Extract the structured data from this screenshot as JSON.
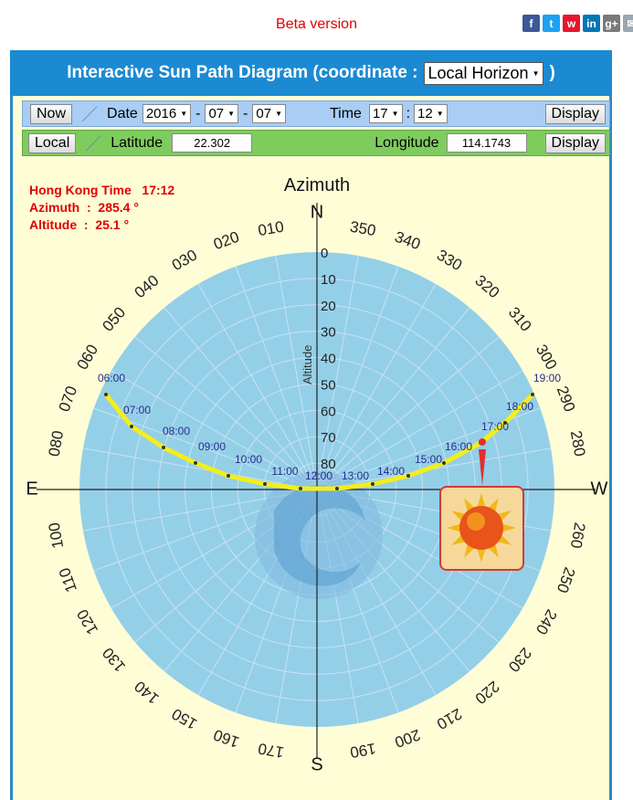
{
  "beta_label": "Beta version",
  "social": [
    {
      "name": "facebook-icon",
      "glyph": "f",
      "color": "#3b5998"
    },
    {
      "name": "twitter-icon",
      "glyph": "t",
      "color": "#1da1f2"
    },
    {
      "name": "weibo-icon",
      "glyph": "w",
      "color": "#e6162d"
    },
    {
      "name": "linkedin-icon",
      "glyph": "in",
      "color": "#0077b5"
    },
    {
      "name": "googleplus-icon",
      "glyph": "g+",
      "color": "#7a7a7a"
    },
    {
      "name": "email-icon",
      "glyph": "✉",
      "color": "#9aa6b2"
    }
  ],
  "header": {
    "title_prefix": "Interactive Sun Path Diagram (coordinate :",
    "coordinate_value": "Local Horizon",
    "title_suffix": ")"
  },
  "datebar": {
    "now_label": "Now",
    "date_label": "Date",
    "year": "2016",
    "dash": "-",
    "month": "07",
    "day": "07",
    "time_label": "Time",
    "hour": "17",
    "colon": ":",
    "minute": "12",
    "display_label": "Display"
  },
  "locbar": {
    "local_label": "Local",
    "latitude_label": "Latitude",
    "latitude_value": "22.302",
    "longitude_label": "Longitude",
    "longitude_value": "114.1743",
    "display_label": "Display"
  },
  "info": {
    "time_line": "Hong Kong Time   17:12",
    "azimuth_line": "Azimuth  :  285.4 °",
    "altitude_line": "Altitude  :  25.1 °"
  },
  "diagram": {
    "azimuth_title": "Azimuth",
    "altitude_label": "Altitude",
    "north": "N",
    "south": "S",
    "east": "E",
    "west": "W",
    "azimuth_ticks": [
      "010",
      "020",
      "030",
      "040",
      "050",
      "060",
      "070",
      "080",
      "100",
      "110",
      "120",
      "130",
      "140",
      "150",
      "160",
      "170",
      "190",
      "200",
      "210",
      "220",
      "230",
      "240",
      "250",
      "260",
      "280",
      "290",
      "300",
      "310",
      "320",
      "330",
      "340",
      "350"
    ],
    "altitude_ticks": [
      "0",
      "10",
      "20",
      "30",
      "40",
      "50",
      "60",
      "70",
      "80"
    ],
    "hour_labels": [
      "06:00",
      "07:00",
      "08:00",
      "09:00",
      "10:00",
      "11:00",
      "12:00",
      "13:00",
      "14:00",
      "15:00",
      "16:00",
      "17:00",
      "18:00",
      "19:00"
    ],
    "colors": {
      "disc": "#94cfe8",
      "path": "#f4ee1a",
      "hour_text": "#2b2b8a",
      "sun_marker": "#e03030"
    }
  },
  "chart_data": {
    "type": "diagram",
    "title": "Azimuth",
    "current_sun": {
      "azimuth_deg": 285.4,
      "altitude_deg": 25.1,
      "time": "17:12"
    },
    "altitude_range": [
      0,
      90
    ],
    "sun_path": [
      {
        "time": "06:00"
      },
      {
        "time": "07:00"
      },
      {
        "time": "08:00"
      },
      {
        "time": "09:00"
      },
      {
        "time": "10:00"
      },
      {
        "time": "11:00"
      },
      {
        "time": "12:00"
      },
      {
        "time": "13:00"
      },
      {
        "time": "14:00"
      },
      {
        "time": "15:00"
      },
      {
        "time": "16:00"
      },
      {
        "time": "17:00"
      },
      {
        "time": "18:00"
      },
      {
        "time": "19:00"
      }
    ]
  }
}
